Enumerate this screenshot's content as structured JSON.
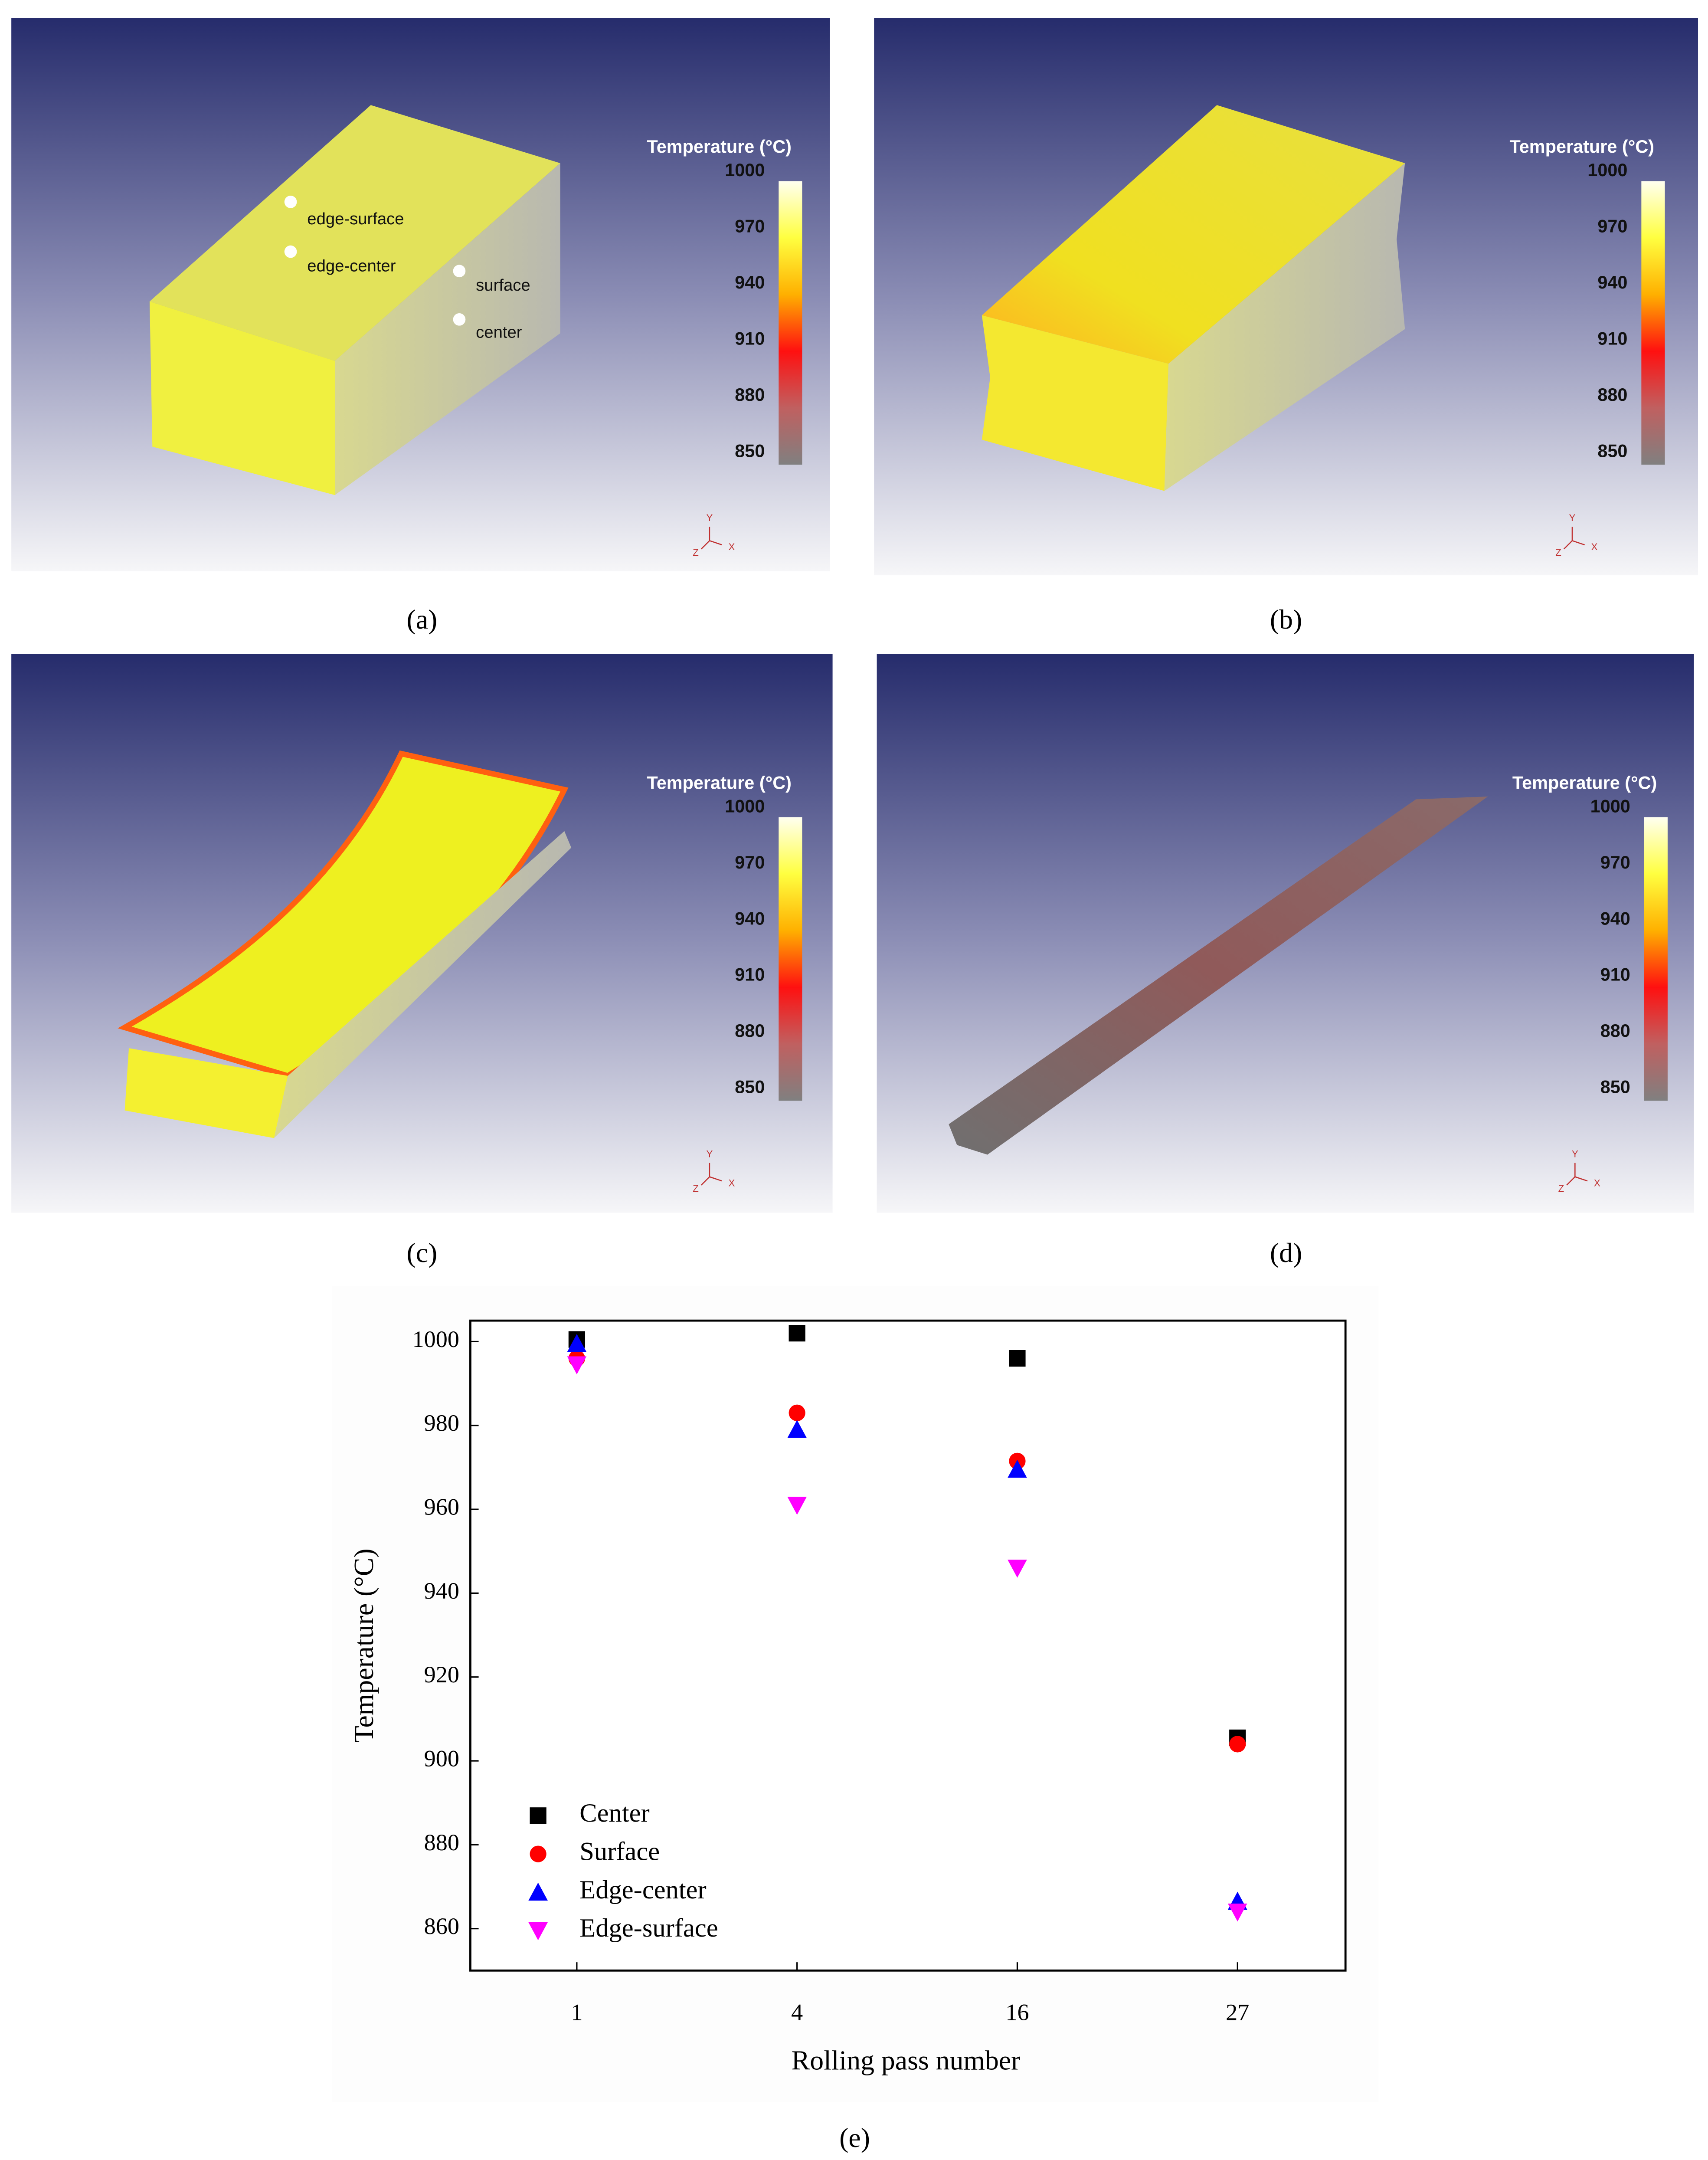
{
  "panels": [
    {
      "caption": "(a)",
      "legend_title": "Temperature (°C)",
      "legend_ticks": [
        1000,
        970,
        940,
        910,
        880,
        850
      ],
      "axis_labels": [
        "Y",
        "Z",
        "X"
      ],
      "annotations": [
        "edge-surface",
        "edge-center",
        "surface",
        "center"
      ]
    },
    {
      "caption": "(b)",
      "legend_title": "Temperature (°C)",
      "legend_ticks": [
        1000,
        970,
        940,
        910,
        880,
        850
      ],
      "axis_labels": [
        "Y",
        "Z",
        "X"
      ]
    },
    {
      "caption": "(c)",
      "legend_title": "Temperature (°C)",
      "legend_ticks": [
        1000,
        970,
        940,
        910,
        880,
        850
      ],
      "axis_labels": [
        "Y",
        "Z",
        "X"
      ]
    },
    {
      "caption": "(d)",
      "legend_title": "Temperature (°C)",
      "legend_ticks": [
        1000,
        970,
        940,
        910,
        880,
        850
      ],
      "axis_labels": [
        "Y",
        "Z",
        "X"
      ]
    }
  ],
  "chart_data": {
    "type": "scatter",
    "caption": "(e)",
    "x_label": "Rolling pass number",
    "y_label": "Temperature (°C)",
    "categories": [
      "1",
      "4",
      "16",
      "27"
    ],
    "series": [
      {
        "name": "Center",
        "color": "#000000",
        "marker": "square",
        "values": [
          1000.5,
          1002,
          996,
          905.5
        ]
      },
      {
        "name": "Surface",
        "color": "#ff0000",
        "marker": "circle",
        "values": [
          996,
          983,
          971.5,
          904
        ]
      },
      {
        "name": "Edge-center",
        "color": "#0000ff",
        "marker": "triangle-up",
        "values": [
          999.5,
          979,
          969.5,
          866.5
        ]
      },
      {
        "name": "Edge-surface",
        "color": "#ff00ff",
        "marker": "triangle-down",
        "values": [
          994.5,
          961,
          946,
          864
        ]
      }
    ],
    "ylim": [
      850,
      1005
    ],
    "yticks": [
      860,
      880,
      900,
      920,
      940,
      960,
      980,
      1000
    ]
  }
}
